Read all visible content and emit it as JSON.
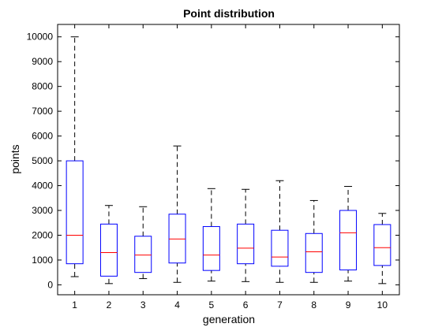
{
  "chart_data": {
    "type": "boxplot",
    "title": "Point distribution",
    "xlabel": "generation",
    "ylabel": "points",
    "categories": [
      "1",
      "2",
      "3",
      "4",
      "5",
      "6",
      "7",
      "8",
      "9",
      "10"
    ],
    "ylim": [
      -400,
      10500
    ],
    "yticks": [
      0,
      1000,
      2000,
      3000,
      4000,
      5000,
      6000,
      7000,
      8000,
      9000,
      10000
    ],
    "grid": false,
    "boxes": [
      {
        "whisker_low": 330,
        "q1": 850,
        "median": 2000,
        "q3": 5000,
        "whisker_high": 10000
      },
      {
        "whisker_low": 50,
        "q1": 350,
        "median": 1300,
        "q3": 2450,
        "whisker_high": 3200
      },
      {
        "whisker_low": 250,
        "q1": 500,
        "median": 1200,
        "q3": 1960,
        "whisker_high": 3150
      },
      {
        "whisker_low": 100,
        "q1": 880,
        "median": 1850,
        "q3": 2850,
        "whisker_high": 5600
      },
      {
        "whisker_low": 150,
        "q1": 580,
        "median": 1200,
        "q3": 2350,
        "whisker_high": 3880
      },
      {
        "whisker_low": 130,
        "q1": 850,
        "median": 1480,
        "q3": 2450,
        "whisker_high": 3850
      },
      {
        "whisker_low": 100,
        "q1": 750,
        "median": 1120,
        "q3": 2200,
        "whisker_high": 4200
      },
      {
        "whisker_low": 100,
        "q1": 500,
        "median": 1330,
        "q3": 2070,
        "whisker_high": 3400
      },
      {
        "whisker_low": 150,
        "q1": 600,
        "median": 2100,
        "q3": 3000,
        "whisker_high": 3970
      },
      {
        "whisker_low": 50,
        "q1": 780,
        "median": 1500,
        "q3": 2430,
        "whisker_high": 2880
      }
    ],
    "colors": {
      "box": "#0000ff",
      "median": "#ff0000",
      "whisker": "#000000",
      "axes": "#000000",
      "background": "#ffffff"
    }
  }
}
